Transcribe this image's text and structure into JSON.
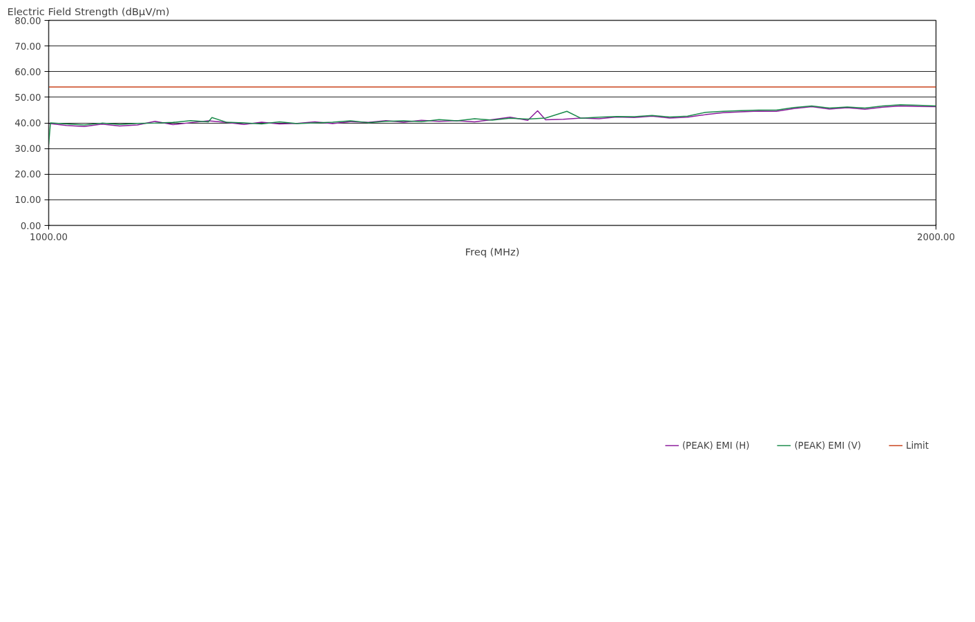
{
  "chart_data": {
    "type": "line",
    "ylabel": "Electric Field Strength (dBµV/m)",
    "xlabel": "Freq (MHz)",
    "xlim": [
      1000,
      2000
    ],
    "ylim": [
      0,
      80
    ],
    "xticks": [
      {
        "value": 1000,
        "label": "1000.00"
      },
      {
        "value": 2000,
        "label": "2000.00"
      }
    ],
    "yticks": [
      {
        "value": 0,
        "label": "0.00"
      },
      {
        "value": 10,
        "label": "10.00"
      },
      {
        "value": 20,
        "label": "20.00"
      },
      {
        "value": 30,
        "label": "30.00"
      },
      {
        "value": 40,
        "label": "40.00"
      },
      {
        "value": 50,
        "label": "50.00"
      },
      {
        "value": 60,
        "label": "60.00"
      },
      {
        "value": 70,
        "label": "70.00"
      },
      {
        "value": 80,
        "label": "80.00"
      }
    ],
    "grid": "y",
    "legend": "bottom",
    "marker": "none",
    "line_style": "solid",
    "series": [
      {
        "name": "(PEAK) EMI (H)",
        "color": "#8b1a9b",
        "x": [
          1000,
          1020,
          1040,
          1060,
          1080,
          1100,
          1120,
          1140,
          1160,
          1180,
          1200,
          1220,
          1240,
          1260,
          1280,
          1300,
          1320,
          1340,
          1360,
          1380,
          1400,
          1420,
          1440,
          1460,
          1480,
          1500,
          1520,
          1540,
          1551,
          1560,
          1580,
          1600,
          1620,
          1640,
          1660,
          1680,
          1700,
          1720,
          1740,
          1760,
          1780,
          1800,
          1820,
          1840,
          1860,
          1880,
          1900,
          1920,
          1940,
          1960,
          1980,
          2000
        ],
        "values": [
          39.8,
          39.0,
          38.6,
          39.5,
          38.8,
          39.2,
          40.6,
          39.3,
          40.1,
          40.8,
          40.2,
          39.4,
          40.3,
          39.6,
          39.8,
          40.4,
          39.7,
          40.5,
          40.2,
          40.9,
          40.3,
          41.0,
          40.6,
          40.9,
          40.4,
          41.3,
          42.2,
          41.0,
          44.7,
          41.2,
          41.4,
          41.9,
          41.6,
          42.3,
          42.1,
          42.6,
          41.9,
          42.2,
          43.2,
          44.0,
          44.3,
          44.6,
          44.5,
          45.6,
          46.3,
          45.4,
          45.9,
          45.3,
          46.1,
          46.6,
          46.4,
          46.3
        ]
      },
      {
        "name": "(PEAK) EMI (V)",
        "color": "#1a8a4a",
        "x": [
          1000,
          1002,
          1020,
          1040,
          1060,
          1080,
          1100,
          1120,
          1140,
          1160,
          1180,
          1184,
          1200,
          1220,
          1240,
          1260,
          1280,
          1300,
          1320,
          1340,
          1360,
          1380,
          1400,
          1420,
          1440,
          1460,
          1480,
          1500,
          1520,
          1540,
          1560,
          1584,
          1600,
          1620,
          1640,
          1660,
          1680,
          1700,
          1720,
          1740,
          1760,
          1780,
          1800,
          1820,
          1840,
          1860,
          1880,
          1900,
          1920,
          1940,
          1960,
          1980,
          2000
        ],
        "values": [
          31.5,
          40.0,
          39.6,
          39.2,
          39.9,
          39.4,
          39.8,
          39.9,
          40.2,
          40.9,
          40.4,
          42.1,
          40.3,
          40.0,
          39.6,
          40.4,
          39.7,
          40.0,
          40.3,
          40.8,
          40.1,
          40.6,
          40.8,
          40.5,
          41.3,
          40.8,
          41.6,
          41.1,
          41.8,
          41.5,
          41.9,
          44.5,
          41.8,
          42.2,
          42.5,
          42.4,
          42.9,
          42.3,
          42.6,
          44.1,
          44.5,
          44.8,
          45.0,
          45.0,
          46.0,
          46.6,
          45.8,
          46.2,
          45.8,
          46.6,
          47.1,
          46.9,
          46.6
        ]
      },
      {
        "name": "Limit",
        "color": "#c8401a",
        "x": [
          1000,
          2000
        ],
        "values": [
          54,
          54
        ]
      }
    ]
  }
}
